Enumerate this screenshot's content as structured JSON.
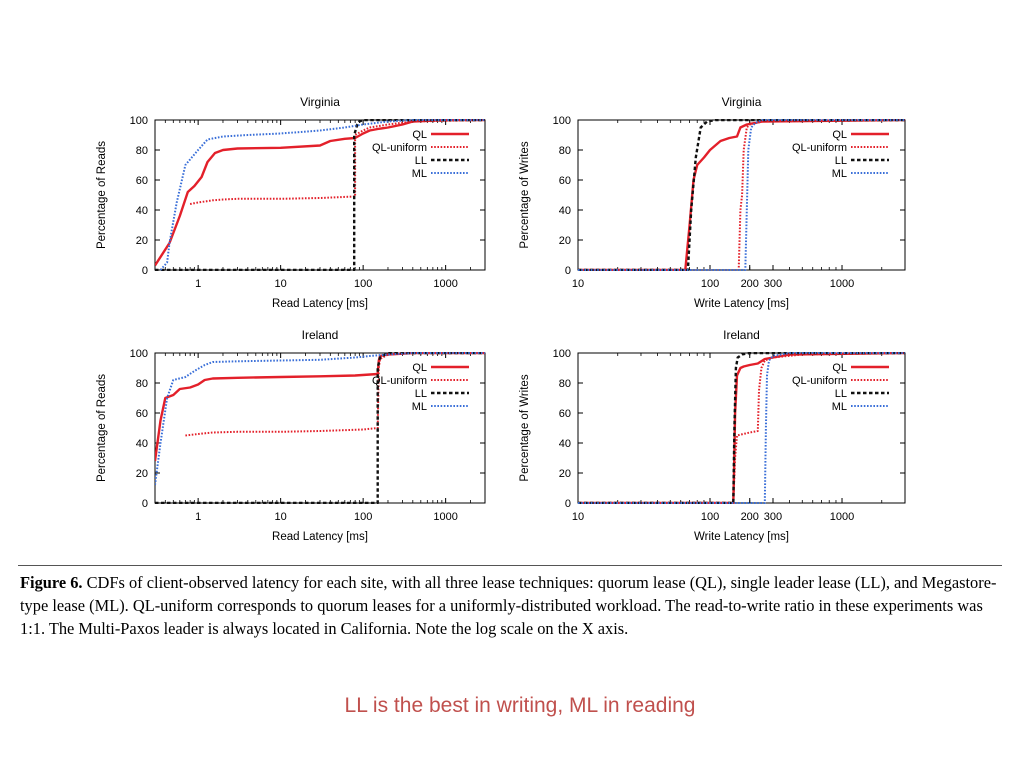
{
  "chart_data": [
    {
      "type": "line",
      "title": "Virginia",
      "xlabel": "Read Latency [ms]",
      "ylabel": "Percentage of Reads",
      "xscale": "log",
      "xlim": [
        0.3,
        3000
      ],
      "ylim": [
        0,
        100
      ],
      "xticks": [
        1,
        10,
        100,
        1000
      ],
      "xtick_labels": [
        "1",
        "10",
        "100",
        "1000"
      ],
      "yticks": [
        0,
        20,
        40,
        60,
        80,
        100
      ],
      "ytick_labels": [
        "0",
        "20",
        "40",
        "60",
        "80",
        "100"
      ],
      "legend": "top-right",
      "series": [
        {
          "name": "QL",
          "color": "#e3202a",
          "style": "solid",
          "x": [
            0.3,
            0.45,
            0.6,
            0.75,
            0.9,
            1.1,
            1.3,
            1.6,
            2,
            3,
            10,
            30,
            40,
            60,
            80,
            100,
            120,
            150,
            200,
            300,
            400,
            1000,
            3000
          ],
          "y": [
            3,
            18,
            36,
            52,
            56,
            62,
            72,
            78,
            80,
            81,
            81.5,
            83,
            86,
            87.5,
            88,
            91,
            93,
            94,
            95,
            97,
            99,
            100,
            100
          ]
        },
        {
          "name": "QL-uniform",
          "color": "#e3202a",
          "style": "dotted",
          "x": [
            0.8,
            1,
            1.5,
            2,
            3,
            10,
            30,
            80,
            80,
            100,
            120,
            200,
            400,
            3000
          ],
          "y": [
            44,
            45,
            46.5,
            47,
            47.5,
            47.5,
            48,
            49,
            90,
            93,
            95,
            97,
            99,
            100
          ]
        },
        {
          "name": "LL",
          "color": "#111111",
          "style": "dashed",
          "x": [
            0.3,
            1,
            10,
            78,
            78,
            85,
            90,
            100,
            3000
          ],
          "y": [
            0,
            0,
            0,
            0,
            90,
            97,
            99,
            100,
            100
          ]
        },
        {
          "name": "ML",
          "color": "#3a6fd8",
          "style": "dotted",
          "x": [
            0.35,
            0.42,
            0.45,
            0.55,
            0.7,
            1,
            1.3,
            2,
            4,
            10,
            30,
            60,
            100,
            200,
            400,
            3000
          ],
          "y": [
            0,
            5,
            18,
            45,
            70,
            80,
            87,
            89,
            90,
            91,
            93,
            95,
            97,
            99,
            100,
            100
          ]
        }
      ]
    },
    {
      "type": "line",
      "title": "Virginia",
      "xlabel": "Write Latency [ms]",
      "ylabel": "Percentage of Writes",
      "xscale": "log",
      "xlim": [
        10,
        3000
      ],
      "ylim": [
        0,
        100
      ],
      "xticks": [
        10,
        100,
        200,
        300,
        1000
      ],
      "xtick_labels": [
        "10",
        "100",
        "200",
        "300",
        "1000"
      ],
      "yticks": [
        0,
        20,
        40,
        60,
        80,
        100
      ],
      "ytick_labels": [
        "0",
        "20",
        "40",
        "60",
        "80",
        "100"
      ],
      "legend": "top-right",
      "series": [
        {
          "name": "QL",
          "color": "#e3202a",
          "style": "solid",
          "x": [
            10,
            65,
            70,
            75,
            80,
            90,
            100,
            120,
            140,
            160,
            170,
            190,
            250,
            3000
          ],
          "y": [
            0,
            0,
            30,
            60,
            70,
            75,
            80,
            86,
            88,
            89,
            95,
            97,
            99,
            100
          ]
        },
        {
          "name": "QL-uniform",
          "color": "#e3202a",
          "style": "dotted",
          "x": [
            10,
            165,
            170,
            175,
            180,
            190,
            200,
            250,
            3000
          ],
          "y": [
            0,
            0,
            40,
            50,
            80,
            95,
            97,
            99,
            100
          ]
        },
        {
          "name": "LL",
          "color": "#111111",
          "style": "dashed",
          "x": [
            10,
            68,
            72,
            78,
            85,
            95,
            110,
            3000
          ],
          "y": [
            0,
            0,
            40,
            75,
            95,
            99,
            100,
            100
          ]
        },
        {
          "name": "ML",
          "color": "#3a6fd8",
          "style": "dotted",
          "x": [
            10,
            185,
            190,
            195,
            205,
            220,
            250,
            3000
          ],
          "y": [
            0,
            0,
            40,
            80,
            95,
            98,
            100,
            100
          ]
        }
      ]
    },
    {
      "type": "line",
      "title": "Ireland",
      "xlabel": "Read Latency [ms]",
      "ylabel": "Percentage of Reads",
      "xscale": "log",
      "xlim": [
        0.3,
        3000
      ],
      "ylim": [
        0,
        100
      ],
      "xticks": [
        1,
        10,
        100,
        1000
      ],
      "xtick_labels": [
        "1",
        "10",
        "100",
        "1000"
      ],
      "yticks": [
        0,
        20,
        40,
        60,
        80,
        100
      ],
      "ytick_labels": [
        "0",
        "20",
        "40",
        "60",
        "80",
        "100"
      ],
      "legend": "top-right",
      "series": [
        {
          "name": "QL",
          "color": "#e3202a",
          "style": "solid",
          "x": [
            0.3,
            0.35,
            0.4,
            0.5,
            0.6,
            0.8,
            1,
            1.2,
            1.5,
            3,
            10,
            30,
            80,
            150,
            155,
            160,
            200,
            400,
            3000
          ],
          "y": [
            28,
            55,
            70,
            72,
            76,
            77,
            79,
            82,
            83,
            83.5,
            84,
            84.5,
            85,
            86,
            95,
            98,
            99,
            100,
            100
          ]
        },
        {
          "name": "QL-uniform",
          "color": "#e3202a",
          "style": "dotted",
          "x": [
            0.7,
            1,
            1.5,
            3,
            10,
            30,
            100,
            150,
            155,
            160,
            200,
            400,
            3000
          ],
          "y": [
            45,
            46,
            47,
            47.5,
            47.5,
            48,
            49,
            50,
            90,
            96,
            99,
            100,
            100
          ]
        },
        {
          "name": "LL",
          "color": "#111111",
          "style": "dashed",
          "x": [
            0.3,
            1,
            10,
            150,
            150,
            160,
            200,
            3000
          ],
          "y": [
            0,
            0,
            0,
            0,
            90,
            97,
            100,
            100
          ]
        },
        {
          "name": "ML",
          "color": "#3a6fd8",
          "style": "dotted",
          "x": [
            0.3,
            0.35,
            0.42,
            0.5,
            0.7,
            0.9,
            1.2,
            1.5,
            3,
            10,
            30,
            80,
            120,
            200,
            400,
            3000
          ],
          "y": [
            12,
            40,
            70,
            82,
            84,
            88,
            92,
            94,
            94.5,
            95,
            95.5,
            97,
            98,
            99,
            100,
            100
          ]
        }
      ]
    },
    {
      "type": "line",
      "title": "Ireland",
      "xlabel": "Write Latency [ms]",
      "ylabel": "Percentage of Writes",
      "xscale": "log",
      "xlim": [
        10,
        3000
      ],
      "ylim": [
        0,
        100
      ],
      "xticks": [
        10,
        100,
        200,
        300,
        1000
      ],
      "xtick_labels": [
        "10",
        "100",
        "200",
        "300",
        "1000"
      ],
      "yticks": [
        0,
        20,
        40,
        60,
        80,
        100
      ],
      "ytick_labels": [
        "0",
        "20",
        "40",
        "60",
        "80",
        "100"
      ],
      "legend": "top-right",
      "series": [
        {
          "name": "QL",
          "color": "#e3202a",
          "style": "solid",
          "x": [
            10,
            150,
            152,
            155,
            160,
            170,
            180,
            200,
            230,
            260,
            400,
            3000
          ],
          "y": [
            0,
            0,
            20,
            60,
            85,
            90,
            91,
            92,
            93,
            96,
            99,
            100
          ]
        },
        {
          "name": "QL-uniform",
          "color": "#e3202a",
          "style": "dotted",
          "x": [
            10,
            150,
            155,
            160,
            200,
            230,
            235,
            245,
            260,
            300,
            500,
            3000
          ],
          "y": [
            0,
            0,
            30,
            45,
            47,
            48,
            75,
            90,
            95,
            97,
            99,
            100
          ]
        },
        {
          "name": "LL",
          "color": "#111111",
          "style": "dashed",
          "x": [
            10,
            150,
            153,
            157,
            162,
            175,
            200,
            3000
          ],
          "y": [
            0,
            0,
            50,
            90,
            97,
            99,
            100,
            100
          ]
        },
        {
          "name": "ML",
          "color": "#3a6fd8",
          "style": "dotted",
          "x": [
            10,
            260,
            265,
            270,
            280,
            300,
            400,
            3000
          ],
          "y": [
            0,
            0,
            50,
            85,
            95,
            98,
            100,
            100
          ]
        }
      ]
    }
  ],
  "caption": {
    "label": "Figure 6.",
    "text": " CDFs of client-observed latency for each site, with all three lease techniques: quorum lease (QL), single leader lease (LL), and Megastore-type lease (ML). QL-uniform corresponds to quorum leases for a uniformly-distributed workload. The read-to-write ratio in these experiments was 1:1. The Multi-Paxos leader is always located in California. Note the log scale on the X axis."
  },
  "note": "LL is the best in writing, ML in reading",
  "colors": {
    "ql": "#e3202a",
    "ll": "#111111",
    "ml": "#3a6fd8",
    "note": "#c0504d"
  }
}
